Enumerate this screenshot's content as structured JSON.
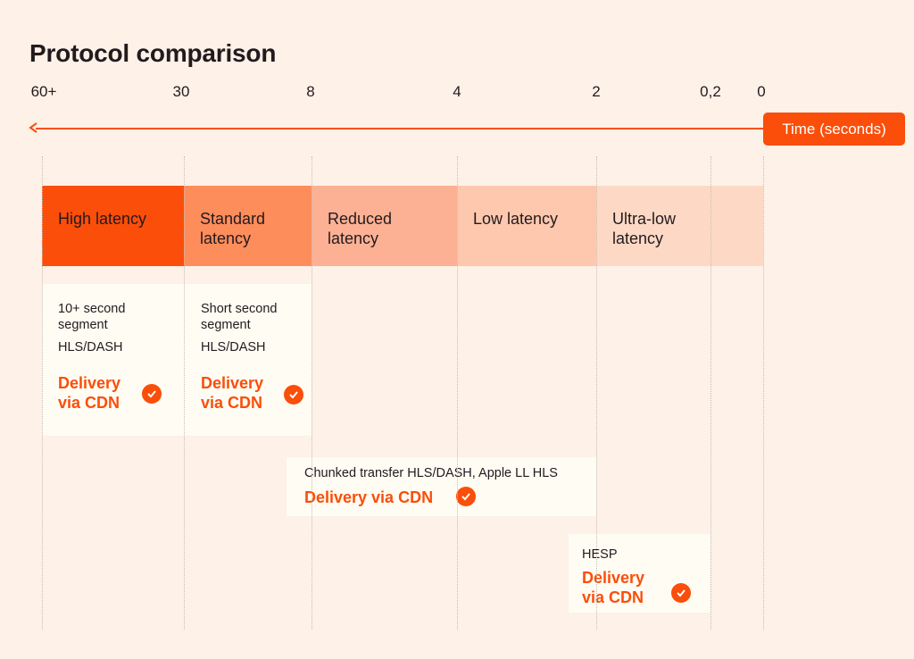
{
  "title": "Protocol comparison",
  "axis": {
    "ticks": [
      "60+",
      "30",
      "8",
      "4",
      "2",
      "0,2",
      "0"
    ],
    "label": "Time (seconds)"
  },
  "bands": [
    {
      "label": "High latency",
      "color": "#fa4e0a"
    },
    {
      "label": "Standard latency",
      "color": "#fe8d5c"
    },
    {
      "label": "Reduced latency",
      "color": "#fdb194"
    },
    {
      "label": "Low latency",
      "color": "#fdc8ad"
    },
    {
      "label": "Ultra-low latency",
      "color": "#fdd9c5"
    }
  ],
  "cards": {
    "high": {
      "line1": "10+ second segment",
      "line2": "HLS/DASH",
      "delivery": "Delivery via CDN"
    },
    "standard": {
      "line1": "Short second segment",
      "line2": "HLS/DASH",
      "delivery": "Delivery via CDN"
    },
    "chunked": {
      "line1": "Chunked transfer HLS/DASH, Apple LL HLS",
      "delivery": "Delivery via CDN"
    },
    "hesp": {
      "line1": "HESP",
      "delivery": "Delivery via CDN"
    }
  },
  "icons": {
    "check": "check-circle-icon",
    "arrow": "arrow-left-icon"
  }
}
